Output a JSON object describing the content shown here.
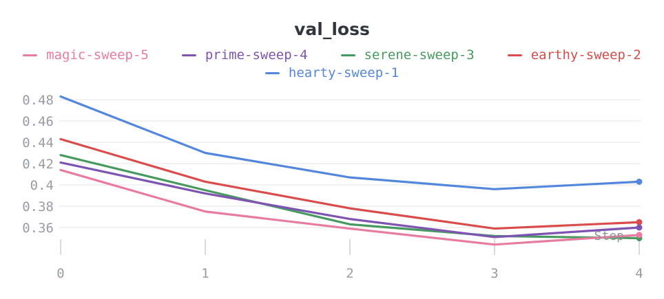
{
  "title": "val_loss",
  "axis": {
    "x_label": "Step",
    "x_tick_labels": [
      "0",
      "1",
      "2",
      "3",
      "4"
    ],
    "y_tick_labels": [
      "0.48",
      "0.46",
      "0.44",
      "0.42",
      "0.4",
      "0.38",
      "0.36"
    ]
  },
  "colors": {
    "title_text": "#32373e",
    "tick_text": "#989ca3",
    "gridline": "#ededee",
    "tick_mark": "#d9dadc",
    "background": "#ffffff"
  },
  "chart_data": {
    "type": "line",
    "title": "val_loss",
    "xlabel": "Step",
    "ylabel": "",
    "x": [
      0,
      1,
      2,
      3,
      4
    ],
    "xlim": [
      0,
      4
    ],
    "ylim": [
      0.344,
      0.484
    ],
    "y_ticks": [
      0.48,
      0.46,
      0.44,
      0.42,
      0.4,
      0.38,
      0.36
    ],
    "grid": "horizontal-only",
    "legend_position": "top",
    "marker": "circle-on-last-point",
    "series": [
      {
        "name": "magic-sweep-5",
        "color": "#E87B9F",
        "values": [
          0.414,
          0.375,
          0.359,
          0.344,
          0.353
        ]
      },
      {
        "name": "prime-sweep-4",
        "color": "#7D54B2",
        "values": [
          0.421,
          0.392,
          0.368,
          0.351,
          0.36
        ]
      },
      {
        "name": "serene-sweep-3",
        "color": "#479A5F",
        "values": [
          0.428,
          0.395,
          0.363,
          0.352,
          0.35
        ]
      },
      {
        "name": "earthy-sweep-2",
        "color": "#DA4C4C",
        "values": [
          0.443,
          0.403,
          0.378,
          0.359,
          0.365
        ]
      },
      {
        "name": "hearty-sweep-1",
        "color": "#5387DD",
        "values": [
          0.483,
          0.43,
          0.407,
          0.396,
          0.403
        ]
      }
    ]
  }
}
